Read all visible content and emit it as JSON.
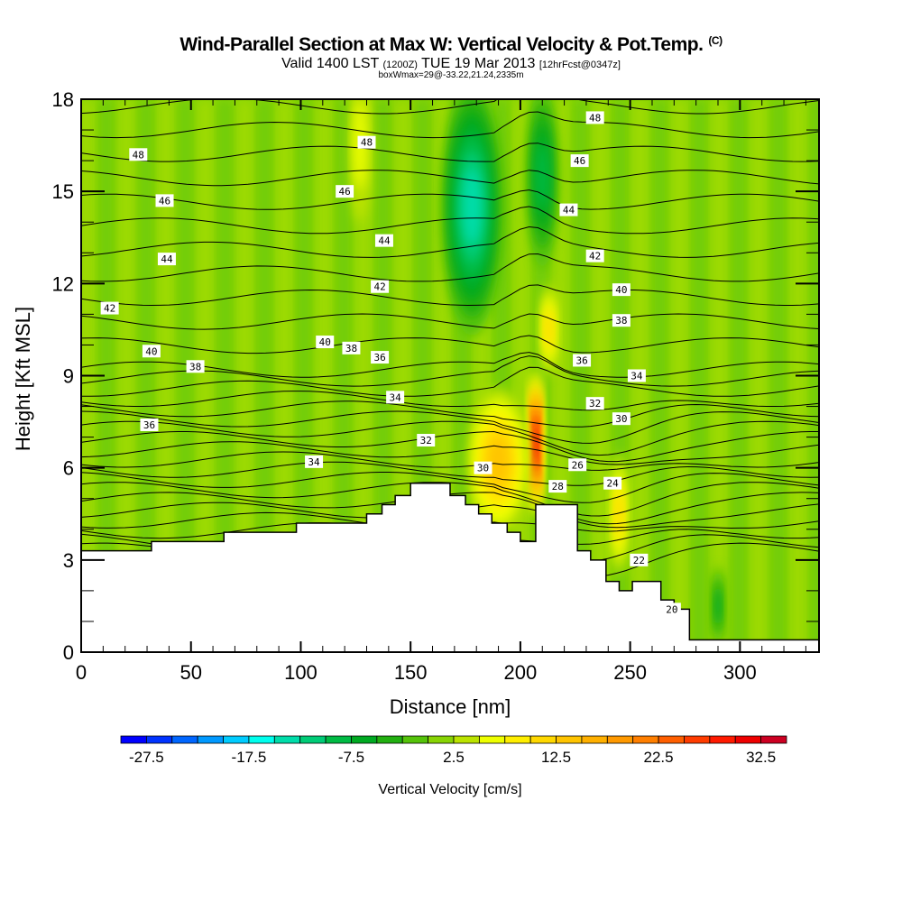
{
  "chart_data": {
    "type": "heatmap",
    "title": "Wind-Parallel Section at Max W: Vertical Velocity & Pot.Temp.",
    "title_mark": "(C)",
    "subtitle_main": "Valid 1400 LST",
    "subtitle_utc": "(1200Z)",
    "subtitle_date": "TUE 19 Mar 2013",
    "subtitle_fcst": "[12hrFcst@0347z]",
    "note": "boxWmax=29@-33.22,21.24,2335m",
    "xlabel": "Distance [nm]",
    "ylabel": "Height [Kft MSL]",
    "xlim": [
      0,
      336
    ],
    "ylim": [
      0,
      18
    ],
    "x_ticks": [
      "0",
      "50",
      "100",
      "150",
      "200",
      "250",
      "300"
    ],
    "x_tick_values": [
      0,
      50,
      100,
      150,
      200,
      250,
      300
    ],
    "y_ticks": [
      "0",
      "3",
      "6",
      "9",
      "12",
      "15",
      "18"
    ],
    "y_tick_values": [
      0,
      3,
      6,
      9,
      12,
      15,
      18
    ],
    "colorbar": {
      "label": "Vertical Velocity [cm/s]",
      "tick_labels": [
        "-27.5",
        "-17.5",
        "-7.5",
        "2.5",
        "12.5",
        "22.5",
        "32.5"
      ],
      "tick_values": [
        -27.5,
        -17.5,
        -7.5,
        2.5,
        12.5,
        22.5,
        32.5
      ],
      "min": -30,
      "max": 35,
      "step": 2.5,
      "colors": [
        "#0000ff",
        "#0033ff",
        "#0066ff",
        "#0099ff",
        "#00ccff",
        "#00ffee",
        "#00ddaa",
        "#00cc77",
        "#00bb44",
        "#00aa22",
        "#22b011",
        "#55c30a",
        "#88d404",
        "#bbe300",
        "#eeff00",
        "#ffee00",
        "#ffd800",
        "#ffc400",
        "#ffb000",
        "#ff9900",
        "#ff7f00",
        "#ff5f00",
        "#ff3c00",
        "#ff1a00",
        "#ee0000",
        "#cc0022"
      ]
    },
    "terrain_kft": [
      {
        "x": 0,
        "h": 3.3
      },
      {
        "x": 32,
        "h": 3.6
      },
      {
        "x": 65,
        "h": 3.9
      },
      {
        "x": 98,
        "h": 4.2
      },
      {
        "x": 130,
        "h": 4.5
      },
      {
        "x": 137,
        "h": 4.8
      },
      {
        "x": 143,
        "h": 5.1
      },
      {
        "x": 150,
        "h": 5.5
      },
      {
        "x": 168,
        "h": 5.1
      },
      {
        "x": 175,
        "h": 4.8
      },
      {
        "x": 181,
        "h": 4.5
      },
      {
        "x": 187,
        "h": 4.2
      },
      {
        "x": 194,
        "h": 3.9
      },
      {
        "x": 200,
        "h": 3.6
      },
      {
        "x": 207,
        "h": 4.8
      },
      {
        "x": 226,
        "h": 3.3
      },
      {
        "x": 232,
        "h": 3.0
      },
      {
        "x": 239,
        "h": 2.3
      },
      {
        "x": 245,
        "h": 2.0
      },
      {
        "x": 251,
        "h": 2.3
      },
      {
        "x": 264,
        "h": 1.7
      },
      {
        "x": 270,
        "h": 1.4
      },
      {
        "x": 277,
        "h": 0.4
      },
      {
        "x": 336,
        "h": 0.4
      }
    ],
    "w_features": [
      {
        "name": "updraft-core",
        "x": 207,
        "y": 6.8,
        "rx": 3,
        "ry": 2.5,
        "value": 30
      },
      {
        "name": "updraft-lobe",
        "x": 190,
        "y": 6.2,
        "rx": 14,
        "ry": 2.4,
        "value": 12
      },
      {
        "name": "downdraft-aloft",
        "x": 178,
        "y": 14.5,
        "rx": 14,
        "ry": 4.2,
        "value": -15
      },
      {
        "name": "downdraft-column",
        "x": 210,
        "y": 15.5,
        "rx": 7,
        "ry": 3,
        "value": -10
      },
      {
        "name": "updraft-lee",
        "x": 245,
        "y": 4.5,
        "rx": 4,
        "ry": 2,
        "value": 8
      },
      {
        "name": "updraft-aloft",
        "x": 127,
        "y": 16.5,
        "rx": 5,
        "ry": 2.5,
        "value": 5
      },
      {
        "name": "updraft-mid",
        "x": 213,
        "y": 10.5,
        "rx": 4,
        "ry": 1.5,
        "value": 10
      },
      {
        "name": "downdraft-lee",
        "x": 290,
        "y": 1.5,
        "rx": 3,
        "ry": 1.3,
        "value": -6
      }
    ],
    "theta_contour_labels": [
      {
        "text": "48",
        "x": 26,
        "y": 16.2
      },
      {
        "text": "46",
        "x": 38,
        "y": 14.7
      },
      {
        "text": "44",
        "x": 39,
        "y": 12.8
      },
      {
        "text": "42",
        "x": 13,
        "y": 11.2
      },
      {
        "text": "40",
        "x": 32,
        "y": 9.8
      },
      {
        "text": "38",
        "x": 52,
        "y": 9.3
      },
      {
        "text": "36",
        "x": 31,
        "y": 7.4
      },
      {
        "text": "48",
        "x": 130,
        "y": 16.6
      },
      {
        "text": "46",
        "x": 120,
        "y": 15.0
      },
      {
        "text": "44",
        "x": 138,
        "y": 13.4
      },
      {
        "text": "42",
        "x": 136,
        "y": 11.9
      },
      {
        "text": "40",
        "x": 111,
        "y": 10.1
      },
      {
        "text": "38",
        "x": 123,
        "y": 9.9
      },
      {
        "text": "36",
        "x": 136,
        "y": 9.6
      },
      {
        "text": "34",
        "x": 143,
        "y": 8.3
      },
      {
        "text": "34",
        "x": 106,
        "y": 6.2
      },
      {
        "text": "32",
        "x": 157,
        "y": 6.9
      },
      {
        "text": "30",
        "x": 183,
        "y": 6.0
      },
      {
        "text": "28",
        "x": 217,
        "y": 5.4
      },
      {
        "text": "26",
        "x": 226,
        "y": 6.1
      },
      {
        "text": "24",
        "x": 242,
        "y": 5.5
      },
      {
        "text": "22",
        "x": 254,
        "y": 3.0
      },
      {
        "text": "20",
        "x": 269,
        "y": 1.4
      },
      {
        "text": "48",
        "x": 234,
        "y": 17.4
      },
      {
        "text": "46",
        "x": 227,
        "y": 16.0
      },
      {
        "text": "44",
        "x": 222,
        "y": 14.4
      },
      {
        "text": "42",
        "x": 234,
        "y": 12.9
      },
      {
        "text": "40",
        "x": 246,
        "y": 11.8
      },
      {
        "text": "38",
        "x": 246,
        "y": 10.8
      },
      {
        "text": "36",
        "x": 228,
        "y": 9.5
      },
      {
        "text": "34",
        "x": 253,
        "y": 9.0
      },
      {
        "text": "32",
        "x": 234,
        "y": 8.1
      },
      {
        "text": "30",
        "x": 246,
        "y": 7.6
      }
    ],
    "theta_contour_min": 20,
    "theta_contour_max": 49,
    "theta_contour_interval": 1
  }
}
